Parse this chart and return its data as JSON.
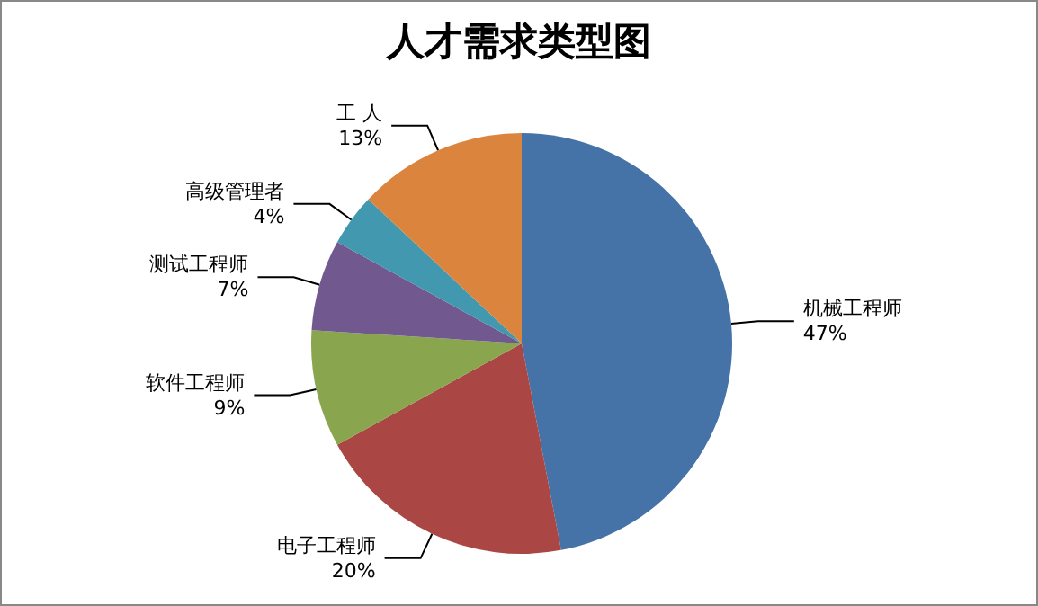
{
  "chart_data": {
    "type": "pie",
    "title": "人才需求类型图",
    "categories": [
      "机械工程师",
      "电子工程师",
      "软件工程师",
      "测试工程师",
      "高级管理者",
      "工 人"
    ],
    "values": [
      47,
      20,
      9,
      7,
      4,
      13
    ],
    "value_labels": [
      "47%",
      "20%",
      "9%",
      "7%",
      "4%",
      "13%"
    ],
    "colors": [
      "#4572a7",
      "#aa4643",
      "#89a54e",
      "#71588f",
      "#4198af",
      "#db843d"
    ],
    "legend": false
  }
}
